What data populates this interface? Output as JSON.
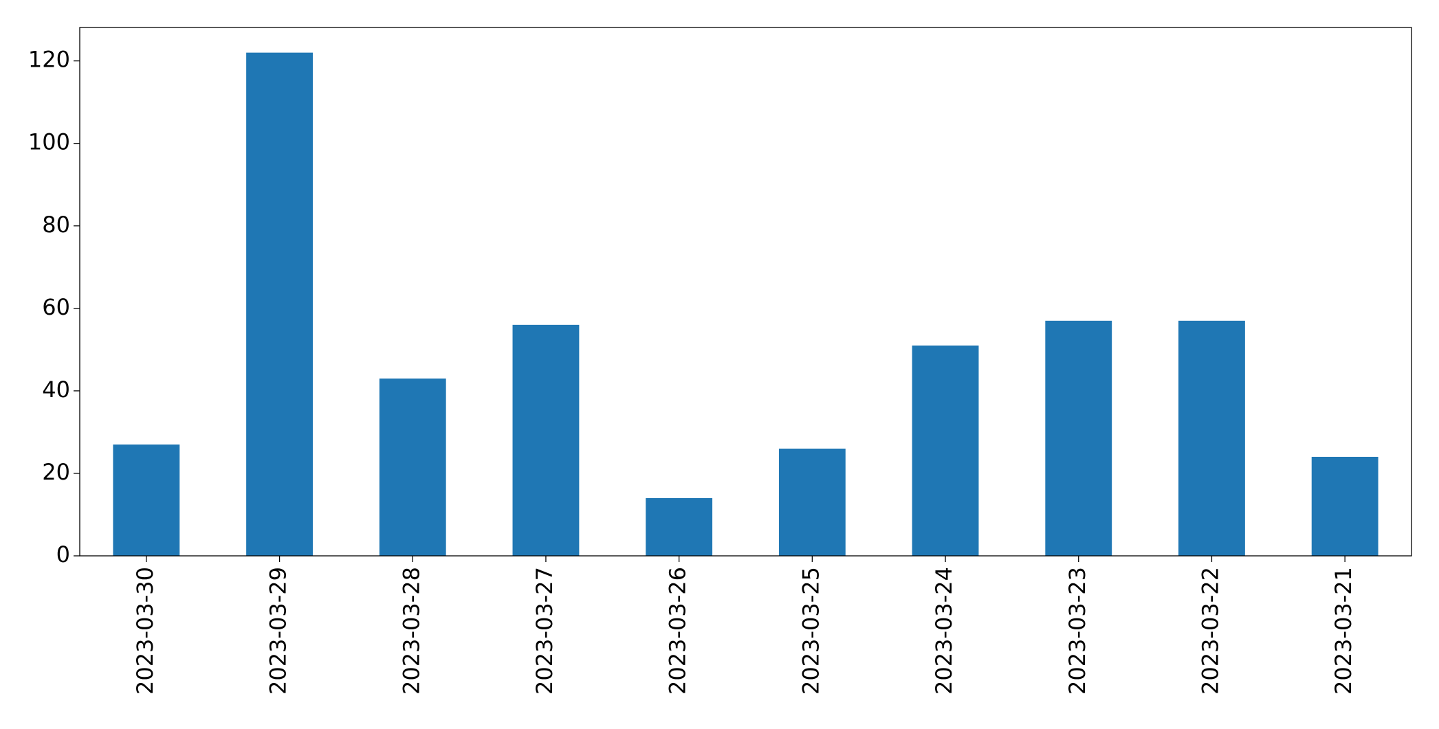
{
  "chart_data": {
    "type": "bar",
    "categories": [
      "2023-03-30",
      "2023-03-29",
      "2023-03-28",
      "2023-03-27",
      "2023-03-26",
      "2023-03-25",
      "2023-03-24",
      "2023-03-23",
      "2023-03-22",
      "2023-03-21"
    ],
    "values": [
      27,
      122,
      43,
      56,
      14,
      26,
      51,
      57,
      57,
      24
    ],
    "color": "#1f77b4",
    "ylim": [
      0,
      128.1
    ],
    "yticks": [
      0,
      20,
      40,
      60,
      80,
      100,
      120
    ],
    "grid": false
  }
}
